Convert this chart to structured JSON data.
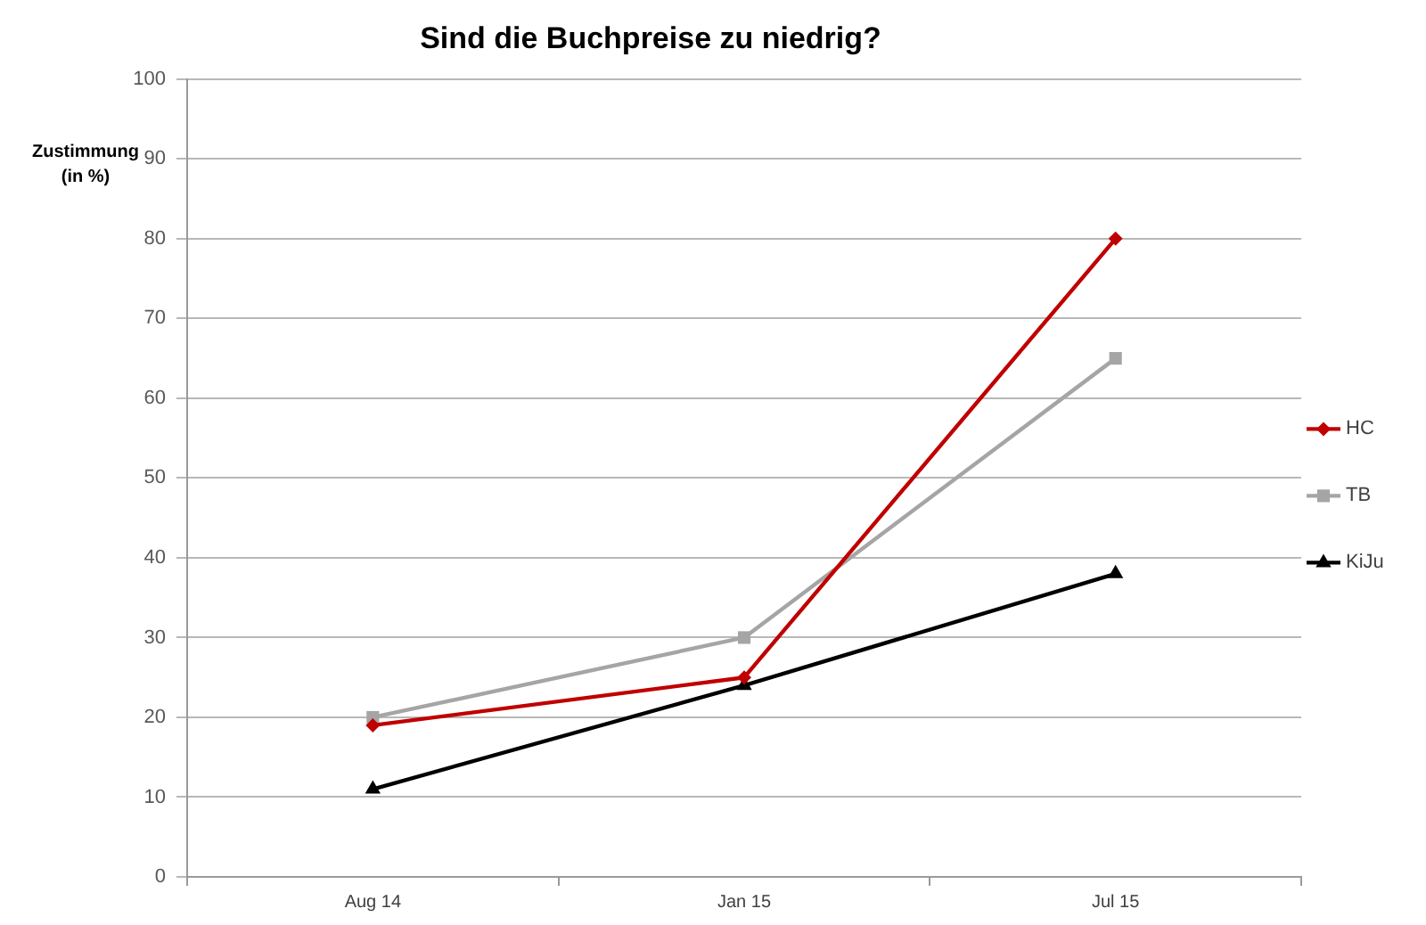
{
  "chart_data": {
    "type": "line",
    "title": "Sind die Buchpreise zu niedrig?",
    "ylabel": "Zustimmung (in %)",
    "categories": [
      "Aug 14",
      "Jan 15",
      "Jul 15"
    ],
    "series": [
      {
        "name": "HC",
        "color": "#c00000",
        "marker": "diamond",
        "values": [
          19,
          25,
          80
        ]
      },
      {
        "name": "TB",
        "color": "#a5a5a5",
        "marker": "square",
        "values": [
          20,
          30,
          65
        ]
      },
      {
        "name": "KiJu",
        "color": "#000000",
        "marker": "triangle",
        "values": [
          11,
          24,
          38
        ]
      }
    ],
    "ylim": [
      0,
      100
    ],
    "yticks": [
      0,
      10,
      20,
      30,
      40,
      50,
      60,
      70,
      80,
      90,
      100
    ],
    "grid": "y",
    "legend": "right",
    "line_style": "solid"
  }
}
